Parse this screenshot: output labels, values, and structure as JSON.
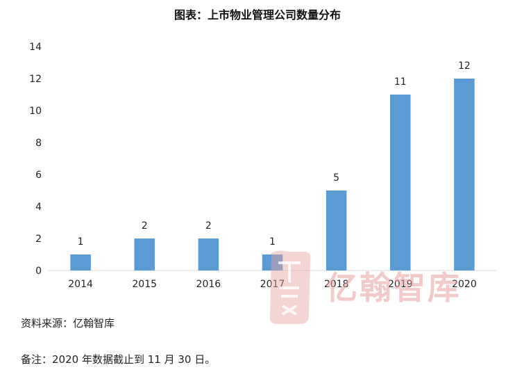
{
  "chart_data": {
    "type": "bar",
    "title": "图表：上市物业管理公司数量分布",
    "categories": [
      "2014",
      "2015",
      "2016",
      "2017",
      "2018",
      "2019",
      "2020"
    ],
    "values": [
      1,
      2,
      2,
      1,
      5,
      11,
      12
    ],
    "ylim": [
      0,
      14
    ],
    "yticks": [
      0,
      2,
      4,
      6,
      8,
      10,
      12,
      14
    ],
    "grid": false,
    "bar_color": "#5b9bd5"
  },
  "notes": {
    "source": "资料来源：亿翰智库",
    "remark": "备注：2020 年数据截止到 11 月 30 日。"
  },
  "watermark": {
    "text": "亿翰智库",
    "color": "#e8a0a0"
  }
}
